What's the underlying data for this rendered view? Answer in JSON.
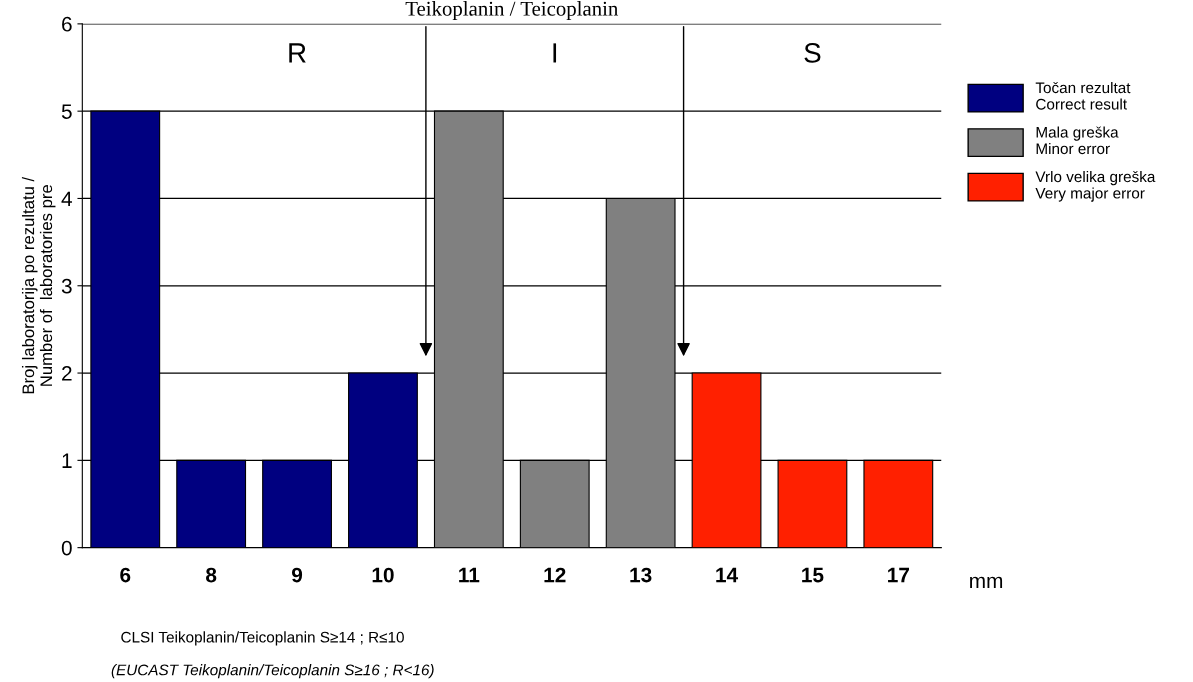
{
  "chart_data": {
    "type": "bar",
    "title": "Teikoplanin / Teicoplanin",
    "ylabel": "Broj laboratorija po rezultatu /\nNumber of  laboratories pre",
    "categories": [
      "6",
      "8",
      "9",
      "10",
      "11",
      "12",
      "13",
      "14",
      "15",
      "17"
    ],
    "series": [
      {
        "name": "Točan rezultat\nCorrect result",
        "color": "#000080",
        "values": [
          5,
          1,
          1,
          2,
          null,
          null,
          null,
          null,
          null,
          null
        ]
      },
      {
        "name": "Mala greška\nMinor error",
        "color": "#808080",
        "values": [
          null,
          null,
          null,
          null,
          5,
          1,
          4,
          null,
          null,
          null
        ]
      },
      {
        "name": "Vrlo velika greška\nVery major error",
        "color": "#ff2000",
        "values": [
          null,
          null,
          null,
          null,
          null,
          null,
          null,
          2,
          1,
          1
        ]
      }
    ],
    "ylim": [
      0,
      6
    ],
    "yticks": [
      0,
      1,
      2,
      3,
      4,
      5,
      6
    ],
    "grid": "y",
    "legend": "top right",
    "annotations": [
      "R",
      "I",
      "S",
      "mm",
      "CLSI Teikoplanin/Teicoplanin S≥14 ; R≤10",
      "(EUCAST Teikoplanin/Teicoplanin S≥16 ; R<16)"
    ]
  }
}
